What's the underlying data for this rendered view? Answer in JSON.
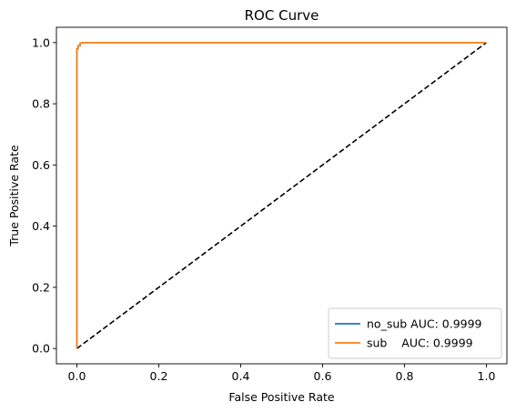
{
  "chart_data": {
    "type": "line",
    "title": "ROC Curve",
    "xlabel": "False Positive Rate",
    "ylabel": "True Positive Rate",
    "xlim": [
      -0.05,
      1.05
    ],
    "ylim": [
      -0.05,
      1.05
    ],
    "xticks": [
      "0.0",
      "0.2",
      "0.4",
      "0.6",
      "0.8",
      "1.0"
    ],
    "yticks": [
      "0.0",
      "0.2",
      "0.4",
      "0.6",
      "0.8",
      "1.0"
    ],
    "grid": false,
    "legend_position": "lower-right",
    "series": [
      {
        "name": "no_sub AUC: 0.9999",
        "color": "#1f77b4",
        "x": [
          0.0,
          0.0,
          0.003,
          0.003,
          0.008,
          0.008,
          0.015,
          1.0
        ],
        "y": [
          0.0,
          0.98,
          0.98,
          0.99,
          0.99,
          0.998,
          1.0,
          1.0
        ]
      },
      {
        "name": "sub    AUC: 0.9999",
        "color": "#ff7f0e",
        "x": [
          0.0,
          0.0,
          0.003,
          0.003,
          0.008,
          0.008,
          0.015,
          1.0
        ],
        "y": [
          0.0,
          0.98,
          0.98,
          0.99,
          0.99,
          0.998,
          1.0,
          1.0
        ]
      }
    ],
    "reference_line": {
      "style": "dashed",
      "color": "#000000",
      "x": [
        0,
        1
      ],
      "y": [
        0,
        1
      ]
    }
  }
}
